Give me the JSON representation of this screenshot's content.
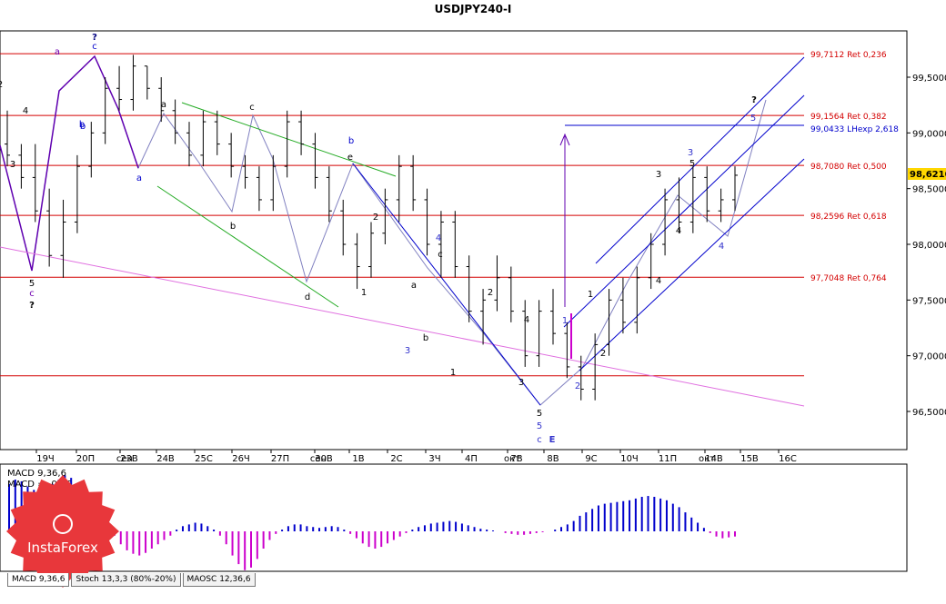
{
  "title": "USDJPY240-I",
  "watermark": "InstaForex",
  "chart_data": {
    "type": "candlestick",
    "title": "USDJPY240-I",
    "symbol": "USDJPY",
    "timeframe": "H4",
    "ylim": [
      96.2,
      99.9
    ],
    "y_ticks": [
      "99,5000",
      "99,0000",
      "98,5000",
      "98,0000",
      "97,5000",
      "97,0000",
      "96,5000"
    ],
    "current_price": "98,6210",
    "x_tick_labels": [
      "19Ч",
      "20П",
      "23В",
      "24В",
      "25С",
      "26Ч",
      "27П",
      "30В",
      "1В",
      "2С",
      "3Ч",
      "4П",
      "7В",
      "8В",
      "9С",
      "10Ч",
      "11П",
      "14В",
      "15В",
      "16С"
    ],
    "x_month_labels": [
      "сен",
      "сен",
      "окт",
      "окт"
    ],
    "levels": [
      {
        "label": "99,7112 Ret 0,236",
        "price": 99.7112,
        "color": "#d40000"
      },
      {
        "label": "99,1564 Ret 0,382",
        "price": 99.1564,
        "color": "#d40000"
      },
      {
        "label": "99,0433 LHexp 2,618",
        "price": 99.0433,
        "color": "#0000cc"
      },
      {
        "label": "98,7080 Ret 0,500",
        "price": 98.708,
        "color": "#d40000"
      },
      {
        "label": "98,2596 Ret 0,618",
        "price": 98.2596,
        "color": "#d40000"
      },
      {
        "label": "97,7048 Ret 0,764",
        "price": 97.7048,
        "color": "#d40000"
      },
      {
        "label": "",
        "price": 96.82,
        "color": "#d40000"
      }
    ],
    "wave_labels": [
      {
        "text": "?",
        "color": "#000080"
      },
      {
        "text": "c",
        "color": "#0000cc"
      },
      {
        "text": "a",
        "color": "#7000b0"
      },
      {
        "text": "b",
        "color": "#0000cc"
      },
      {
        "text": "a",
        "color": "#0000cc"
      },
      {
        "text": "a",
        "color": "#000000"
      },
      {
        "text": "b",
        "color": "#000000"
      },
      {
        "text": "c",
        "color": "#000000"
      },
      {
        "text": "d",
        "color": "#000000"
      },
      {
        "text": "e",
        "color": "#000000"
      },
      {
        "text": "b",
        "color": "#0000cc"
      },
      {
        "text": "4",
        "color": "#3333cc"
      },
      {
        "text": "c",
        "color": "#000000"
      },
      {
        "text": "a",
        "color": "#000000"
      },
      {
        "text": "b",
        "color": "#000000"
      },
      {
        "text": "3",
        "color": "#3333cc"
      },
      {
        "text": "1",
        "color": "#000000"
      },
      {
        "text": "2",
        "color": "#000000"
      },
      {
        "text": "1",
        "color": "#000000"
      },
      {
        "text": "2",
        "color": "#000000"
      },
      {
        "text": "3",
        "color": "#000000"
      },
      {
        "text": "4",
        "color": "#000000"
      },
      {
        "text": "5",
        "color": "#000000"
      },
      {
        "text": "5",
        "color": "#3333cc"
      },
      {
        "text": "c",
        "color": "#3333cc"
      },
      {
        "text": "E",
        "color": "#3333cc"
      },
      {
        "text": "1",
        "color": "#3333cc"
      },
      {
        "text": "2",
        "color": "#3333cc"
      },
      {
        "text": "1",
        "color": "#000000"
      },
      {
        "text": "2",
        "color": "#000000"
      },
      {
        "text": "3",
        "color": "#000000"
      },
      {
        "text": "4",
        "color": "#000000"
      },
      {
        "text": "5",
        "color": "#000000"
      },
      {
        "text": "3",
        "color": "#3333cc"
      },
      {
        "text": "4",
        "color": "#3333cc"
      },
      {
        "text": "4",
        "color": "#000000"
      },
      {
        "text": "5",
        "color": "#3333cc"
      },
      {
        "text": "?",
        "color": "#000000"
      },
      {
        "text": "5",
        "color": "#000000"
      },
      {
        "text": "c",
        "color": "#7000b0"
      },
      {
        "text": "?",
        "color": "#000000"
      },
      {
        "text": "2",
        "color": "#000000"
      },
      {
        "text": "4",
        "color": "#000000"
      },
      {
        "text": "3",
        "color": "#000000"
      },
      {
        "text": "b",
        "color": "#0000cc"
      }
    ],
    "candles": [
      [
        98.9,
        99.2,
        98.7,
        98.8
      ],
      [
        98.8,
        98.9,
        98.5,
        98.6
      ],
      [
        98.6,
        98.9,
        98.2,
        98.3
      ],
      [
        98.3,
        98.5,
        97.8,
        97.9
      ],
      [
        97.9,
        98.4,
        97.7,
        98.2
      ],
      [
        98.2,
        98.8,
        98.1,
        98.7
      ],
      [
        98.7,
        99.1,
        98.6,
        99.0
      ],
      [
        99.0,
        99.5,
        98.9,
        99.4
      ],
      [
        99.4,
        99.6,
        99.2,
        99.3
      ],
      [
        99.3,
        99.7,
        99.2,
        99.6
      ],
      [
        99.6,
        99.6,
        99.3,
        99.4
      ],
      [
        99.4,
        99.5,
        99.1,
        99.2
      ],
      [
        99.2,
        99.3,
        98.9,
        99.0
      ],
      [
        99.0,
        99.1,
        98.7,
        98.8
      ],
      [
        98.8,
        99.2,
        98.7,
        99.1
      ],
      [
        99.1,
        99.2,
        98.8,
        98.9
      ],
      [
        98.9,
        99.0,
        98.6,
        98.7
      ],
      [
        98.7,
        98.8,
        98.5,
        98.6
      ],
      [
        98.6,
        98.7,
        98.3,
        98.4
      ],
      [
        98.4,
        98.8,
        98.3,
        98.7
      ],
      [
        98.7,
        99.2,
        98.6,
        99.1
      ],
      [
        99.1,
        99.2,
        98.8,
        98.9
      ],
      [
        98.9,
        99.0,
        98.5,
        98.6
      ],
      [
        98.6,
        98.7,
        98.2,
        98.3
      ],
      [
        98.3,
        98.4,
        97.9,
        98.0
      ],
      [
        98.0,
        98.1,
        97.6,
        97.8
      ],
      [
        97.8,
        98.2,
        97.7,
        98.1
      ],
      [
        98.1,
        98.5,
        98.0,
        98.4
      ],
      [
        98.4,
        98.8,
        98.2,
        98.7
      ],
      [
        98.7,
        98.8,
        98.3,
        98.4
      ],
      [
        98.4,
        98.5,
        97.9,
        98.0
      ],
      [
        98.0,
        98.3,
        97.7,
        98.2
      ],
      [
        98.2,
        98.3,
        97.7,
        97.8
      ],
      [
        97.8,
        97.9,
        97.3,
        97.4
      ],
      [
        97.4,
        97.6,
        97.1,
        97.5
      ],
      [
        97.5,
        97.9,
        97.4,
        97.7
      ],
      [
        97.7,
        97.8,
        97.3,
        97.4
      ],
      [
        97.4,
        97.5,
        96.9,
        97.0
      ],
      [
        97.0,
        97.5,
        96.9,
        97.4
      ],
      [
        97.4,
        97.6,
        97.1,
        97.2
      ],
      [
        97.2,
        97.3,
        96.8,
        96.9
      ],
      [
        96.9,
        97.0,
        96.6,
        96.7
      ],
      [
        96.7,
        97.2,
        96.6,
        97.1
      ],
      [
        97.1,
        97.6,
        97.0,
        97.5
      ],
      [
        97.5,
        97.7,
        97.2,
        97.3
      ],
      [
        97.3,
        97.8,
        97.2,
        97.7
      ],
      [
        97.7,
        98.1,
        97.6,
        98.0
      ],
      [
        98.0,
        98.5,
        97.9,
        98.4
      ],
      [
        98.4,
        98.6,
        98.1,
        98.2
      ],
      [
        98.2,
        98.7,
        98.1,
        98.6
      ],
      [
        98.6,
        98.7,
        98.2,
        98.3
      ],
      [
        98.3,
        98.5,
        98.2,
        98.4
      ],
      [
        98.4,
        98.7,
        98.3,
        98.62
      ]
    ],
    "indicators": [
      {
        "name": "MACD 9,36,6",
        "label": "MACD 9,36,6",
        "value_label": "MACD = -0,06",
        "value": -0.06,
        "histogram": [
          0.55,
          0.6,
          0.58,
          0.52,
          0.48,
          0.46,
          0.5,
          0.55,
          0.6,
          0.65,
          0.62,
          0.55,
          0.45,
          0.35,
          0.25,
          0.15,
          0.05,
          -0.05,
          -0.15,
          -0.22,
          -0.26,
          -0.28,
          -0.25,
          -0.2,
          -0.15,
          -0.1,
          -0.05,
          0.02,
          0.06,
          0.08,
          0.1,
          0.09,
          0.06,
          0.02,
          -0.05,
          -0.15,
          -0.28,
          -0.38,
          -0.45,
          -0.42,
          -0.32,
          -0.2,
          -0.1,
          -0.03,
          0.02,
          0.06,
          0.08,
          0.08,
          0.06,
          0.05,
          0.04,
          0.05,
          0.06,
          0.05,
          0.02,
          -0.03,
          -0.08,
          -0.14,
          -0.18,
          -0.2,
          -0.18,
          -0.14,
          -0.1,
          -0.06,
          -0.02,
          0.02,
          0.05,
          0.07,
          0.09,
          0.1,
          0.11,
          0.12,
          0.11,
          0.09,
          0.07,
          0.05,
          0.03,
          0.02,
          0.01,
          0.0,
          -0.02,
          -0.03,
          -0.04,
          -0.04,
          -0.03,
          -0.02,
          -0.01,
          0.0,
          0.02,
          0.05,
          0.08,
          0.12,
          0.18,
          0.22,
          0.26,
          0.3,
          0.32,
          0.33,
          0.34,
          0.35,
          0.36,
          0.38,
          0.4,
          0.41,
          0.4,
          0.38,
          0.36,
          0.32,
          0.28,
          0.22,
          0.16,
          0.1,
          0.04,
          -0.02,
          -0.06,
          -0.08,
          -0.07,
          -0.06
        ]
      }
    ],
    "grid": false
  },
  "tabs": [
    {
      "label": "MACD 9,36,6",
      "active": true
    },
    {
      "label": "Stoch 13,3,3 (80%-20%)",
      "active": false
    },
    {
      "label": "MAOSC 12,36,6",
      "active": false
    }
  ],
  "colors": {
    "level": "#d40000",
    "lhexp": "#0000cc",
    "channel": "#0000cc",
    "green_channel": "#22aa22",
    "pink_line": "#e070e0",
    "macd_pos": "#0000cc",
    "macd_neg": "#cc00cc",
    "price_box": "#ffd700"
  }
}
